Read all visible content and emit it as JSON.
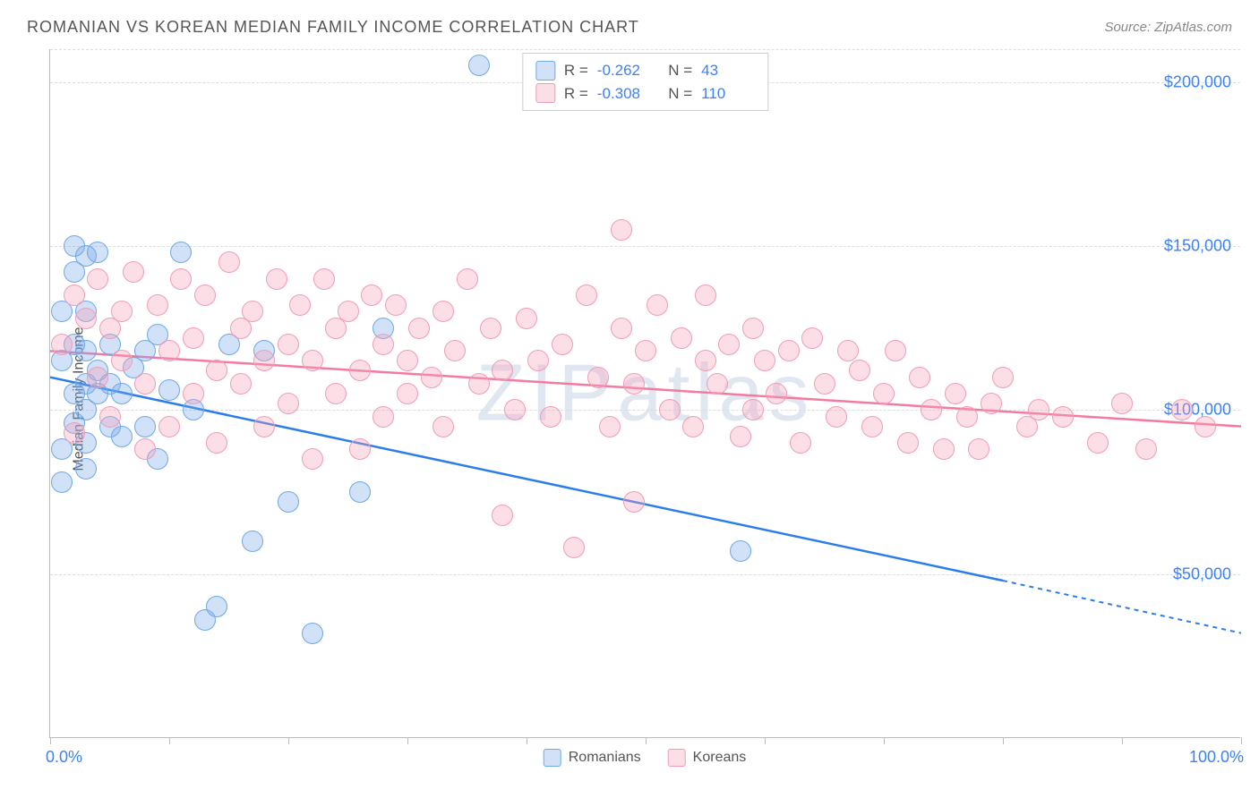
{
  "title": "ROMANIAN VS KOREAN MEDIAN FAMILY INCOME CORRELATION CHART",
  "source": "Source: ZipAtlas.com",
  "ylabel": "Median Family Income",
  "watermark": "ZIPatlas",
  "colors": {
    "blue_fill": "rgba(120,170,235,0.35)",
    "blue_stroke": "#6fa8e6",
    "pink_fill": "rgba(245,160,185,0.35)",
    "pink_stroke": "#f09cb5",
    "blue_line": "#2b7de9",
    "pink_line": "#f47ba0",
    "axis_text": "#3b82f6",
    "grid": "#dddddd",
    "text": "#555555"
  },
  "chart": {
    "type": "scatter",
    "xlim": [
      0,
      100
    ],
    "ylim": [
      0,
      210000
    ],
    "xticks": [
      0,
      10,
      20,
      30,
      40,
      50,
      60,
      70,
      80,
      90,
      100
    ],
    "yticks": [
      50000,
      100000,
      150000,
      200000
    ],
    "ytick_labels": [
      "$50,000",
      "$100,000",
      "$150,000",
      "$200,000"
    ],
    "xlabel_min": "0.0%",
    "xlabel_max": "100.0%",
    "point_radius": 11,
    "point_stroke": 1.5,
    "series": [
      {
        "name": "Romanians",
        "legend": "Romanians",
        "color_fill_key": "blue_fill",
        "color_stroke_key": "blue_stroke",
        "line_color_key": "blue_line",
        "stats": {
          "R": "-0.262",
          "N": "43"
        },
        "trend": {
          "x1": 0,
          "y1": 110000,
          "x2": 80,
          "y2": 48000,
          "dash_from_x": 80,
          "x3": 100,
          "y3": 32000
        },
        "points": [
          [
            1,
            115000
          ],
          [
            1,
            130000
          ],
          [
            2,
            150000
          ],
          [
            2,
            142000
          ],
          [
            2,
            120000
          ],
          [
            2,
            105000
          ],
          [
            2,
            96000
          ],
          [
            1,
            88000
          ],
          [
            1,
            78000
          ],
          [
            3,
            147000
          ],
          [
            3,
            130000
          ],
          [
            3,
            118000
          ],
          [
            3,
            108000
          ],
          [
            3,
            100000
          ],
          [
            3,
            90000
          ],
          [
            3,
            82000
          ],
          [
            4,
            148000
          ],
          [
            4,
            112000
          ],
          [
            4,
            105000
          ],
          [
            5,
            120000
          ],
          [
            5,
            108000
          ],
          [
            5,
            95000
          ],
          [
            6,
            105000
          ],
          [
            6,
            92000
          ],
          [
            7,
            113000
          ],
          [
            8,
            118000
          ],
          [
            8,
            95000
          ],
          [
            9,
            123000
          ],
          [
            9,
            85000
          ],
          [
            10,
            106000
          ],
          [
            11,
            148000
          ],
          [
            12,
            100000
          ],
          [
            13,
            36000
          ],
          [
            14,
            40000
          ],
          [
            15,
            120000
          ],
          [
            17,
            60000
          ],
          [
            18,
            118000
          ],
          [
            20,
            72000
          ],
          [
            22,
            32000
          ],
          [
            26,
            75000
          ],
          [
            28,
            125000
          ],
          [
            36,
            205000
          ],
          [
            58,
            57000
          ]
        ]
      },
      {
        "name": "Koreans",
        "legend": "Koreans",
        "color_fill_key": "pink_fill",
        "color_stroke_key": "pink_stroke",
        "line_color_key": "pink_line",
        "stats": {
          "R": "-0.308",
          "N": "110"
        },
        "trend": {
          "x1": 0,
          "y1": 118000,
          "x2": 100,
          "y2": 95000
        },
        "points": [
          [
            1,
            120000
          ],
          [
            2,
            135000
          ],
          [
            2,
            93000
          ],
          [
            3,
            128000
          ],
          [
            4,
            140000
          ],
          [
            4,
            110000
          ],
          [
            5,
            125000
          ],
          [
            5,
            98000
          ],
          [
            6,
            130000
          ],
          [
            6,
            115000
          ],
          [
            7,
            142000
          ],
          [
            8,
            108000
          ],
          [
            8,
            88000
          ],
          [
            9,
            132000
          ],
          [
            10,
            118000
          ],
          [
            10,
            95000
          ],
          [
            11,
            140000
          ],
          [
            12,
            122000
          ],
          [
            12,
            105000
          ],
          [
            13,
            135000
          ],
          [
            14,
            112000
          ],
          [
            14,
            90000
          ],
          [
            15,
            145000
          ],
          [
            16,
            125000
          ],
          [
            16,
            108000
          ],
          [
            17,
            130000
          ],
          [
            18,
            115000
          ],
          [
            18,
            95000
          ],
          [
            19,
            140000
          ],
          [
            20,
            120000
          ],
          [
            20,
            102000
          ],
          [
            21,
            132000
          ],
          [
            22,
            115000
          ],
          [
            22,
            85000
          ],
          [
            23,
            140000
          ],
          [
            24,
            125000
          ],
          [
            24,
            105000
          ],
          [
            25,
            130000
          ],
          [
            26,
            112000
          ],
          [
            26,
            88000
          ],
          [
            27,
            135000
          ],
          [
            28,
            120000
          ],
          [
            28,
            98000
          ],
          [
            29,
            132000
          ],
          [
            30,
            115000
          ],
          [
            30,
            105000
          ],
          [
            31,
            125000
          ],
          [
            32,
            110000
          ],
          [
            33,
            130000
          ],
          [
            33,
            95000
          ],
          [
            34,
            118000
          ],
          [
            35,
            140000
          ],
          [
            36,
            108000
          ],
          [
            37,
            125000
          ],
          [
            38,
            112000
          ],
          [
            38,
            68000
          ],
          [
            39,
            100000
          ],
          [
            40,
            128000
          ],
          [
            41,
            115000
          ],
          [
            42,
            98000
          ],
          [
            43,
            120000
          ],
          [
            44,
            58000
          ],
          [
            45,
            135000
          ],
          [
            46,
            110000
          ],
          [
            47,
            95000
          ],
          [
            48,
            155000
          ],
          [
            48,
            125000
          ],
          [
            49,
            108000
          ],
          [
            49,
            72000
          ],
          [
            50,
            118000
          ],
          [
            51,
            132000
          ],
          [
            52,
            100000
          ],
          [
            53,
            122000
          ],
          [
            54,
            95000
          ],
          [
            55,
            135000
          ],
          [
            55,
            115000
          ],
          [
            56,
            108000
          ],
          [
            57,
            120000
          ],
          [
            58,
            92000
          ],
          [
            59,
            125000
          ],
          [
            59,
            100000
          ],
          [
            60,
            115000
          ],
          [
            61,
            105000
          ],
          [
            62,
            118000
          ],
          [
            63,
            90000
          ],
          [
            64,
            122000
          ],
          [
            65,
            108000
          ],
          [
            66,
            98000
          ],
          [
            67,
            118000
          ],
          [
            68,
            112000
          ],
          [
            69,
            95000
          ],
          [
            70,
            105000
          ],
          [
            71,
            118000
          ],
          [
            72,
            90000
          ],
          [
            73,
            110000
          ],
          [
            74,
            100000
          ],
          [
            75,
            88000
          ],
          [
            76,
            105000
          ],
          [
            77,
            98000
          ],
          [
            78,
            88000
          ],
          [
            79,
            102000
          ],
          [
            80,
            110000
          ],
          [
            82,
            95000
          ],
          [
            83,
            100000
          ],
          [
            85,
            98000
          ],
          [
            88,
            90000
          ],
          [
            90,
            102000
          ],
          [
            92,
            88000
          ],
          [
            95,
            100000
          ],
          [
            97,
            95000
          ]
        ]
      }
    ]
  }
}
